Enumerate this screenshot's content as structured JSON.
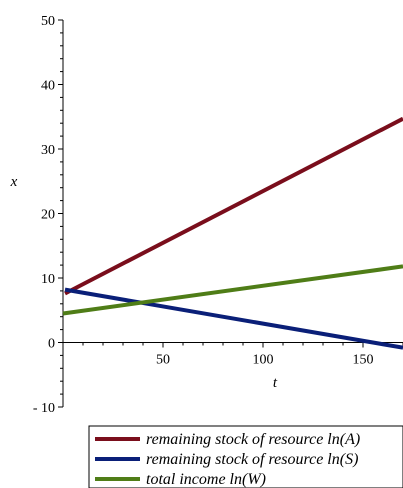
{
  "chart_data": {
    "type": "line",
    "xlabel": "t",
    "ylabel": "x",
    "xlim": [
      0,
      170
    ],
    "ylim": [
      -10,
      50
    ],
    "xticks": [
      50,
      100,
      150
    ],
    "yticks": [
      -10,
      0,
      10,
      20,
      30,
      40,
      50
    ],
    "xtick_labels": [
      "50",
      "100",
      "150"
    ],
    "ytick_labels": [
      "- 10",
      "0",
      "10",
      "20",
      "30",
      "40",
      "50"
    ],
    "grid": false,
    "legend_position": "bottom-right",
    "series": [
      {
        "name": "remaining stock of resource ln(A)",
        "color": "#7a0e1c",
        "x": [
          1,
          170
        ],
        "y": [
          7.6,
          34.7
        ]
      },
      {
        "name": "remaining stock of resource ln(S)",
        "color": "#0a1f78",
        "x": [
          1,
          170
        ],
        "y": [
          8.2,
          -0.8
        ]
      },
      {
        "name": "total income ln(W)",
        "color": "#4f7d17",
        "x": [
          0,
          170
        ],
        "y": [
          4.5,
          11.8
        ]
      }
    ]
  }
}
